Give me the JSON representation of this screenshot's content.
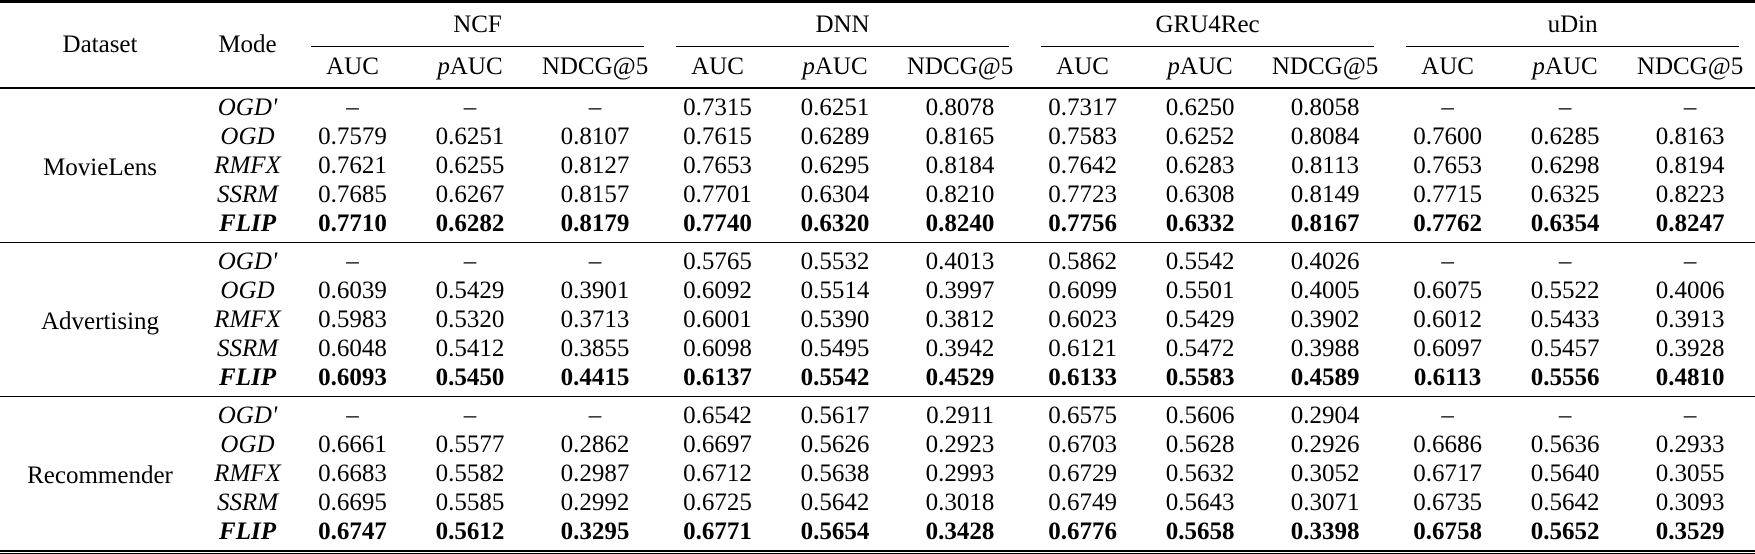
{
  "page": {
    "background_color": "#ffffff",
    "text_color": "#000000",
    "rule_color": "#000000"
  },
  "table": {
    "header": {
      "dataset": "Dataset",
      "mode": "Mode",
      "groups": [
        "NCF",
        "DNN",
        "GRU4Rec",
        "uDin"
      ],
      "metrics": [
        "AUC",
        "pAUC",
        "NDCG@5"
      ]
    },
    "placeholder_dash": "–",
    "sections": [
      {
        "dataset": "MovieLens",
        "rows": [
          {
            "mode": "OGD'",
            "bold": false,
            "values": [
              "–",
              "–",
              "–",
              "0.7315",
              "0.6251",
              "0.8078",
              "0.7317",
              "0.6250",
              "0.8058",
              "–",
              "–",
              "–"
            ]
          },
          {
            "mode": "OGD",
            "bold": false,
            "values": [
              "0.7579",
              "0.6251",
              "0.8107",
              "0.7615",
              "0.6289",
              "0.8165",
              "0.7583",
              "0.6252",
              "0.8084",
              "0.7600",
              "0.6285",
              "0.8163"
            ]
          },
          {
            "mode": "RMFX",
            "bold": false,
            "values": [
              "0.7621",
              "0.6255",
              "0.8127",
              "0.7653",
              "0.6295",
              "0.8184",
              "0.7642",
              "0.6283",
              "0.8113",
              "0.7653",
              "0.6298",
              "0.8194"
            ]
          },
          {
            "mode": "SSRM",
            "bold": false,
            "values": [
              "0.7685",
              "0.6267",
              "0.8157",
              "0.7701",
              "0.6304",
              "0.8210",
              "0.7723",
              "0.6308",
              "0.8149",
              "0.7715",
              "0.6325",
              "0.8223"
            ]
          },
          {
            "mode": "FLIP",
            "bold": true,
            "values": [
              "0.7710",
              "0.6282",
              "0.8179",
              "0.7740",
              "0.6320",
              "0.8240",
              "0.7756",
              "0.6332",
              "0.8167",
              "0.7762",
              "0.6354",
              "0.8247"
            ]
          }
        ]
      },
      {
        "dataset": "Advertising",
        "rows": [
          {
            "mode": "OGD'",
            "bold": false,
            "values": [
              "–",
              "–",
              "–",
              "0.5765",
              "0.5532",
              "0.4013",
              "0.5862",
              "0.5542",
              "0.4026",
              "–",
              "–",
              "–"
            ]
          },
          {
            "mode": "OGD",
            "bold": false,
            "values": [
              "0.6039",
              "0.5429",
              "0.3901",
              "0.6092",
              "0.5514",
              "0.3997",
              "0.6099",
              "0.5501",
              "0.4005",
              "0.6075",
              "0.5522",
              "0.4006"
            ]
          },
          {
            "mode": "RMFX",
            "bold": false,
            "values": [
              "0.5983",
              "0.5320",
              "0.3713",
              "0.6001",
              "0.5390",
              "0.3812",
              "0.6023",
              "0.5429",
              "0.3902",
              "0.6012",
              "0.5433",
              "0.3913"
            ]
          },
          {
            "mode": "SSRM",
            "bold": false,
            "values": [
              "0.6048",
              "0.5412",
              "0.3855",
              "0.6098",
              "0.5495",
              "0.3942",
              "0.6121",
              "0.5472",
              "0.3988",
              "0.6097",
              "0.5457",
              "0.3928"
            ]
          },
          {
            "mode": "FLIP",
            "bold": true,
            "values": [
              "0.6093",
              "0.5450",
              "0.4415",
              "0.6137",
              "0.5542",
              "0.4529",
              "0.6133",
              "0.5583",
              "0.4589",
              "0.6113",
              "0.5556",
              "0.4810"
            ]
          }
        ]
      },
      {
        "dataset": "Recommender",
        "rows": [
          {
            "mode": "OGD'",
            "bold": false,
            "values": [
              "–",
              "–",
              "–",
              "0.6542",
              "0.5617",
              "0.2911",
              "0.6575",
              "0.5606",
              "0.2904",
              "–",
              "–",
              "–"
            ]
          },
          {
            "mode": "OGD",
            "bold": false,
            "values": [
              "0.6661",
              "0.5577",
              "0.2862",
              "0.6697",
              "0.5626",
              "0.2923",
              "0.6703",
              "0.5628",
              "0.2926",
              "0.6686",
              "0.5636",
              "0.2933"
            ]
          },
          {
            "mode": "RMFX",
            "bold": false,
            "values": [
              "0.6683",
              "0.5582",
              "0.2987",
              "0.6712",
              "0.5638",
              "0.2993",
              "0.6729",
              "0.5632",
              "0.3052",
              "0.6717",
              "0.5640",
              "0.3055"
            ]
          },
          {
            "mode": "SSRM",
            "bold": false,
            "values": [
              "0.6695",
              "0.5585",
              "0.2992",
              "0.6725",
              "0.5642",
              "0.3018",
              "0.6749",
              "0.5643",
              "0.3071",
              "0.6735",
              "0.5642",
              "0.3093"
            ]
          },
          {
            "mode": "FLIP",
            "bold": true,
            "values": [
              "0.6747",
              "0.5612",
              "0.3295",
              "0.6771",
              "0.5654",
              "0.3428",
              "0.6776",
              "0.5658",
              "0.3398",
              "0.6758",
              "0.5652",
              "0.3529"
            ]
          }
        ]
      }
    ]
  }
}
